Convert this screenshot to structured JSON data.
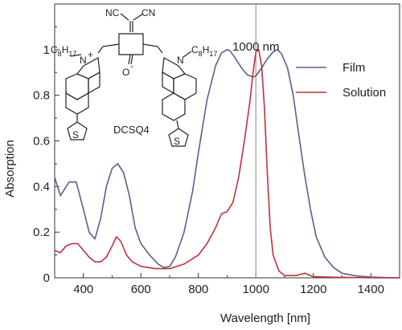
{
  "chart_data": {
    "type": "line",
    "xlabel": "Wavelength [nm]",
    "ylabel": "Absorption",
    "xlim": [
      300,
      1500
    ],
    "ylim": [
      0,
      1.2
    ],
    "xticks": [
      {
        "value": 400,
        "label": "400"
      },
      {
        "value": 600,
        "label": "600"
      },
      {
        "value": 800,
        "label": "800"
      },
      {
        "value": 1000,
        "label": "1000"
      },
      {
        "value": 1200,
        "label": "1200"
      },
      {
        "value": 1400,
        "label": "1400"
      }
    ],
    "yticks": [
      {
        "value": 0,
        "label": "0"
      },
      {
        "value": 0.2,
        "label": "0.2"
      },
      {
        "value": 0.4,
        "label": "0.4"
      },
      {
        "value": 0.6,
        "label": "0.6"
      },
      {
        "value": 0.8,
        "label": "0.8"
      },
      {
        "value": 1,
        "label": "1"
      }
    ],
    "grid": false,
    "legend_position": "top-right",
    "series": [
      {
        "name": "Film",
        "color": "#5b5f8f",
        "x": [
          300,
          320,
          350,
          375,
          400,
          420,
          440,
          460,
          480,
          500,
          520,
          540,
          560,
          580,
          600,
          630,
          660,
          680,
          700,
          720,
          750,
          780,
          800,
          830,
          860,
          880,
          900,
          910,
          930,
          950,
          970,
          990,
          1000,
          1020,
          1040,
          1060,
          1075,
          1090,
          1110,
          1130,
          1150,
          1170,
          1190,
          1210,
          1240,
          1270,
          1300,
          1350,
          1400,
          1450,
          1500
        ],
        "y": [
          0.44,
          0.36,
          0.42,
          0.42,
          0.3,
          0.2,
          0.17,
          0.26,
          0.4,
          0.48,
          0.5,
          0.46,
          0.36,
          0.22,
          0.15,
          0.1,
          0.06,
          0.045,
          0.05,
          0.09,
          0.2,
          0.38,
          0.55,
          0.78,
          0.93,
          0.985,
          1.0,
          0.995,
          0.96,
          0.92,
          0.89,
          0.88,
          0.885,
          0.92,
          0.96,
          0.99,
          1.0,
          0.98,
          0.92,
          0.8,
          0.62,
          0.45,
          0.3,
          0.18,
          0.09,
          0.045,
          0.02,
          0.008,
          0.003,
          0.001,
          0.0
        ]
      },
      {
        "name": "Solution",
        "color": "#c1303a",
        "x": [
          300,
          320,
          340,
          360,
          380,
          400,
          420,
          440,
          460,
          480,
          500,
          515,
          530,
          550,
          570,
          600,
          650,
          700,
          750,
          800,
          830,
          860,
          880,
          900,
          920,
          940,
          960,
          980,
          990,
          1000,
          1010,
          1020,
          1030,
          1040,
          1050,
          1060,
          1080,
          1100,
          1140,
          1170,
          1200,
          1250,
          1300,
          1400,
          1500
        ],
        "y": [
          0.12,
          0.11,
          0.14,
          0.15,
          0.15,
          0.12,
          0.09,
          0.07,
          0.07,
          0.09,
          0.14,
          0.18,
          0.16,
          0.1,
          0.07,
          0.05,
          0.04,
          0.04,
          0.06,
          0.1,
          0.15,
          0.22,
          0.28,
          0.29,
          0.33,
          0.44,
          0.6,
          0.78,
          0.9,
          0.99,
          1.0,
          0.93,
          0.74,
          0.45,
          0.22,
          0.1,
          0.03,
          0.01,
          0.01,
          0.02,
          0.005,
          0.003,
          0.002,
          0.0,
          0.0
        ]
      }
    ],
    "annotations": [
      {
        "type": "vline",
        "x": 1000,
        "label": "1000 nm",
        "color": "#9a9a9a"
      }
    ]
  },
  "structure": {
    "compound": "DCSQ4",
    "labels": {
      "nc": "NC",
      "cn": "CN",
      "n_left": "N",
      "n_left_charge": "+",
      "n_right": "N",
      "o": "O",
      "o_charge": "-",
      "c8": "C",
      "sub8": "8",
      "h17": "H",
      "sub17": "17",
      "s": "S"
    }
  }
}
